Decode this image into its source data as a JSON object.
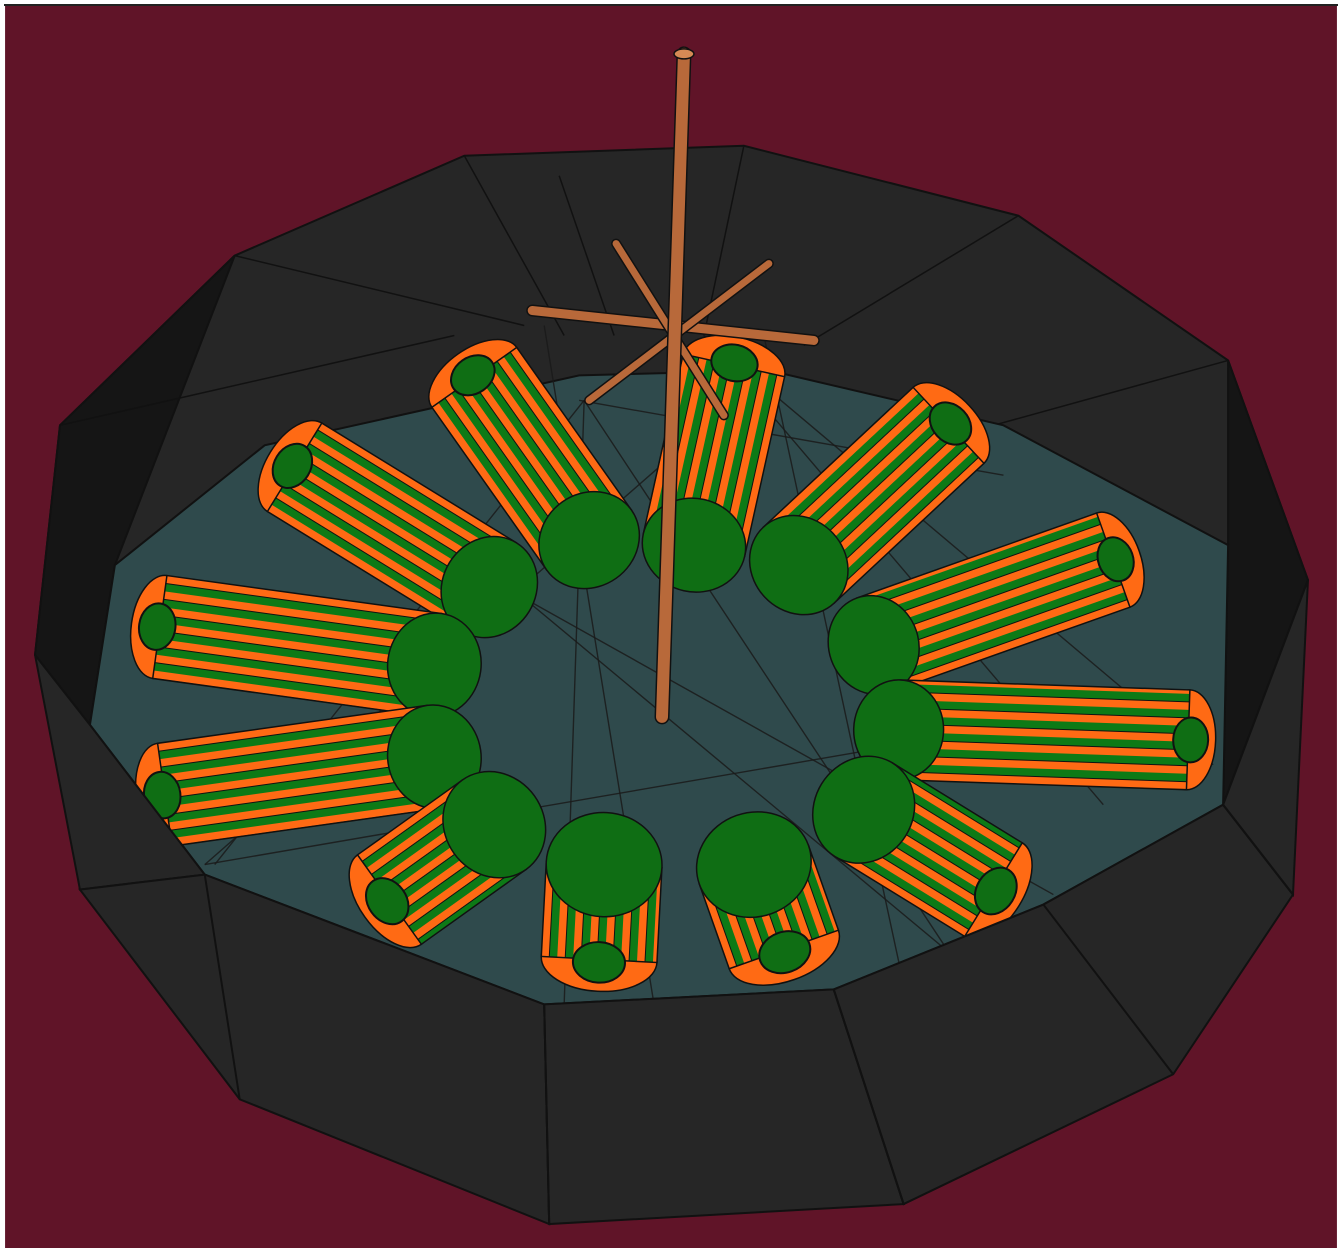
{
  "scene": {
    "background_color": "#601428",
    "wall_color": "#262626",
    "wall_dark_color": "#151515",
    "floor_color": "#2f4a4c",
    "stick_color": "#b8693a",
    "capsule_stripe_a": "#ff6a14",
    "capsule_stripe_b": "#0d7a16",
    "capsule_cap": "#0f6e14",
    "outline_color": "#111111",
    "capsule_count": 12,
    "wall_segments": 14,
    "icons": [
      "scene-render",
      "capsule",
      "stick",
      "enclosure-wall"
    ]
  }
}
